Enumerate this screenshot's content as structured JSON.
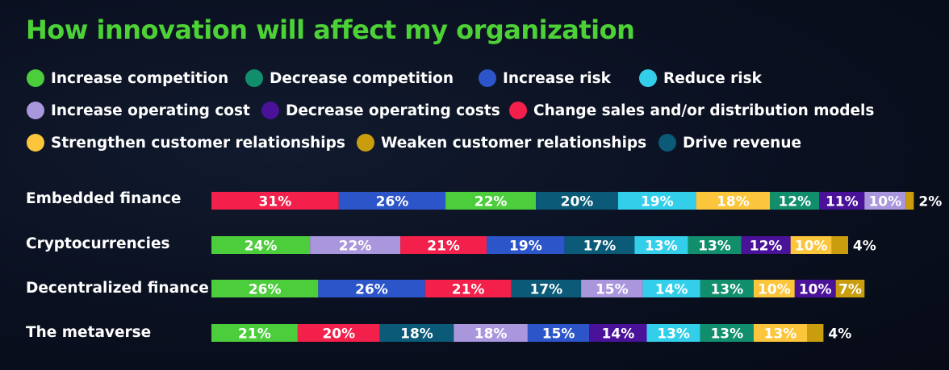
{
  "title": "How innovation will affect my organization",
  "colors": {
    "title": "#4cd137",
    "Increase competition": "#4ccd3c",
    "Decrease competition": "#118f6d",
    "Increase risk": "#2c55c9",
    "Reduce risk": "#33cfea",
    "Increase operating cost": "#a996dd",
    "Decrease operating costs": "#4a1299",
    "Change sales and/or distribution models": "#f2204a",
    "Strengthen customer relationships": "#fcc63c",
    "Weaken customer relationships": "#c99d0e",
    "Drive revenue": "#0a5a78"
  },
  "chart_data": {
    "type": "bar",
    "orientation": "horizontal",
    "stacked": true,
    "title": "How innovation will affect my organization",
    "legend": [
      "Increase competition",
      "Decrease competition",
      "Increase risk",
      "Reduce risk",
      "Increase operating cost",
      "Decrease operating costs",
      "Change sales and/or distribution models",
      "Strengthen customer relationships",
      "Weaken customer relationships",
      "Drive revenue"
    ],
    "legend_placement": "top",
    "grid": false,
    "rows": [
      {
        "category": "Embedded finance",
        "segments": [
          {
            "series": "Change sales and/or distribution models",
            "value": 31,
            "label": "31%"
          },
          {
            "series": "Increase risk",
            "value": 26,
            "label": "26%"
          },
          {
            "series": "Increase competition",
            "value": 22,
            "label": "22%"
          },
          {
            "series": "Drive revenue",
            "value": 20,
            "label": "20%"
          },
          {
            "series": "Reduce risk",
            "value": 19,
            "label": "19%"
          },
          {
            "series": "Strengthen customer relationships",
            "value": 18,
            "label": "18%"
          },
          {
            "series": "Decrease competition",
            "value": 12,
            "label": "12%"
          },
          {
            "series": "Decrease operating costs",
            "value": 11,
            "label": "11%"
          },
          {
            "series": "Increase operating cost",
            "value": 10,
            "label": "10%"
          },
          {
            "series": "Weaken customer relationships",
            "value": 2,
            "label": "2%"
          }
        ]
      },
      {
        "category": "Cryptocurrencies",
        "segments": [
          {
            "series": "Increase competition",
            "value": 24,
            "label": "24%"
          },
          {
            "series": "Increase operating cost",
            "value": 22,
            "label": "22%"
          },
          {
            "series": "Change sales and/or distribution models",
            "value": 21,
            "label": "21%"
          },
          {
            "series": "Increase risk",
            "value": 19,
            "label": "19%"
          },
          {
            "series": "Drive revenue",
            "value": 17,
            "label": "17%"
          },
          {
            "series": "Reduce risk",
            "value": 13,
            "label": "13%"
          },
          {
            "series": "Decrease competition",
            "value": 13,
            "label": "13%"
          },
          {
            "series": "Decrease operating costs",
            "value": 12,
            "label": "12%"
          },
          {
            "series": "Strengthen customer relationships",
            "value": 10,
            "label": "10%"
          },
          {
            "series": "Weaken customer relationships",
            "value": 4,
            "label": "4%"
          }
        ]
      },
      {
        "category": "Decentralized finance",
        "segments": [
          {
            "series": "Increase competition",
            "value": 26,
            "label": "26%"
          },
          {
            "series": "Increase risk",
            "value": 26,
            "label": "26%"
          },
          {
            "series": "Change sales and/or distribution models",
            "value": 21,
            "label": "21%"
          },
          {
            "series": "Drive revenue",
            "value": 17,
            "label": "17%"
          },
          {
            "series": "Increase operating cost",
            "value": 15,
            "label": "15%"
          },
          {
            "series": "Reduce risk",
            "value": 14,
            "label": "14%"
          },
          {
            "series": "Decrease competition",
            "value": 13,
            "label": "13%"
          },
          {
            "series": "Strengthen customer relationships",
            "value": 10,
            "label": "10%"
          },
          {
            "series": "Decrease operating costs",
            "value": 10,
            "label": "10%"
          },
          {
            "series": "Weaken customer relationships",
            "value": 7,
            "label": "7%"
          }
        ]
      },
      {
        "category": "The metaverse",
        "segments": [
          {
            "series": "Increase competition",
            "value": 21,
            "label": "21%"
          },
          {
            "series": "Change sales and/or distribution models",
            "value": 20,
            "label": "20%"
          },
          {
            "series": "Drive revenue",
            "value": 18,
            "label": "18%"
          },
          {
            "series": "Increase operating cost",
            "value": 18,
            "label": "18%"
          },
          {
            "series": "Increase risk",
            "value": 15,
            "label": "15%"
          },
          {
            "series": "Decrease operating costs",
            "value": 14,
            "label": "14%"
          },
          {
            "series": "Reduce risk",
            "value": 13,
            "label": "13%"
          },
          {
            "series": "Decrease competition",
            "value": 13,
            "label": "13%"
          },
          {
            "series": "Strengthen customer relationships",
            "value": 13,
            "label": "13%"
          },
          {
            "series": "Weaken customer relationships",
            "value": 4,
            "label": "4%"
          }
        ]
      }
    ]
  }
}
